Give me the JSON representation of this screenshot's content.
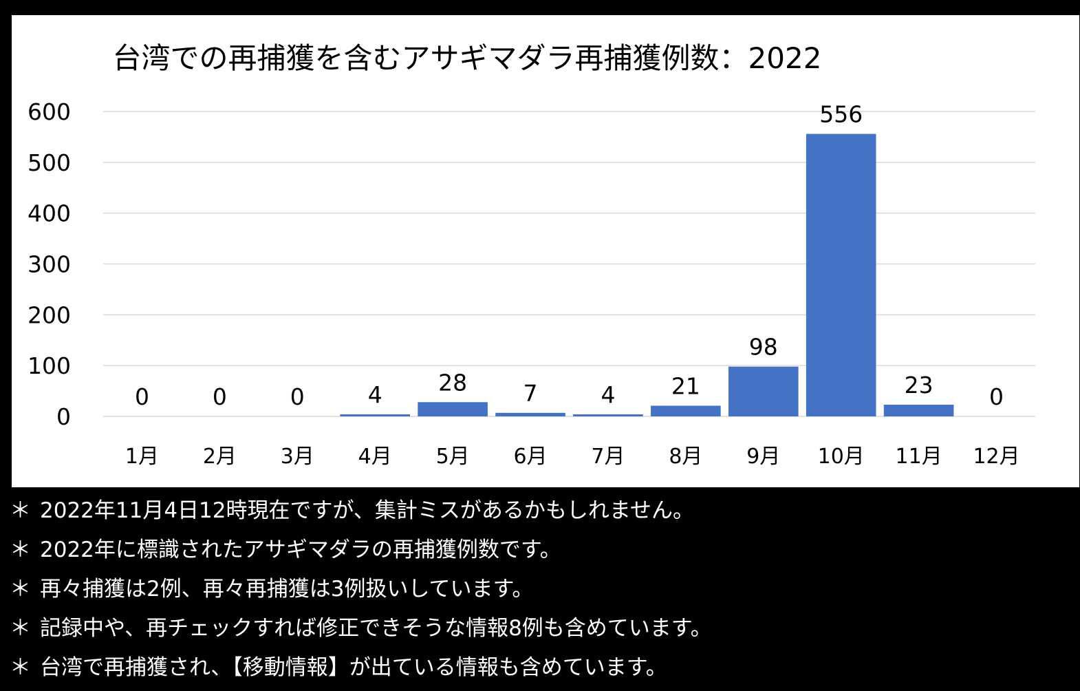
{
  "chart_data": {
    "type": "bar",
    "title": "台湾での再捕獲を含むアサギマダラ再捕獲例数：2022",
    "xlabel": "",
    "ylabel": "",
    "categories": [
      "1月",
      "2月",
      "3月",
      "4月",
      "5月",
      "6月",
      "7月",
      "8月",
      "9月",
      "10月",
      "11月",
      "12月"
    ],
    "values": [
      0,
      0,
      0,
      4,
      28,
      7,
      4,
      21,
      98,
      556,
      23,
      0
    ],
    "ylim": [
      0,
      600
    ],
    "yticks": [
      "0",
      "100",
      "200",
      "300",
      "400",
      "500",
      "600"
    ],
    "grid": true,
    "data_labels": true,
    "bar_color": "#4472C4",
    "gridline_color": "#D9D9D9"
  },
  "notes": {
    "bullet": "＊",
    "lines": [
      "2022年11月4日12時現在ですが、集計ミスがあるかもしれません。",
      "2022年に標識されたアサギマダラの再捕獲例数です。",
      "再々捕獲は2例、再々再捕獲は3例扱いしています。",
      "記録中や、再チェックすれば修正できそうな情報8例も含めています。",
      "台湾で再捕獲され、【移動情報】が出ている情報も含めています。"
    ]
  },
  "colors": {
    "background": "#000000",
    "panel": "#FFFFFF",
    "note_text": "#FFFFFF"
  }
}
